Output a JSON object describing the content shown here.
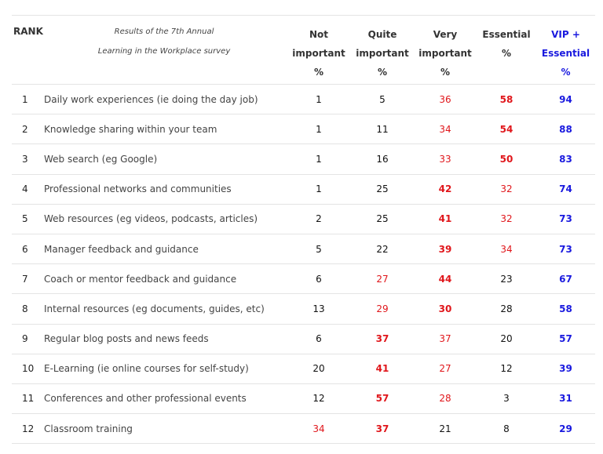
{
  "header": {
    "rank": "RANK",
    "title_line1": "Results of the  7th Annual",
    "title_line2": "Learning in the Workplace survey",
    "not_l1": "Not",
    "not_l2": "important",
    "not_l3": "%",
    "quite_l1": "Quite",
    "quite_l2": "important",
    "quite_l3": "%",
    "very_l1": "Very",
    "very_l2": "important",
    "very_l3": "%",
    "ess_l1": "Essential",
    "ess_l2": "%",
    "vip_l1": "VIP +",
    "vip_l2": "Essential",
    "vip_l3": "%"
  },
  "colors": {
    "red": "#e0161b",
    "blue": "#1a1adf",
    "black": "#111111"
  },
  "rows": [
    {
      "rank": "1",
      "item": "Daily work experiences (ie doing the day job)",
      "not": "1",
      "quite": "5",
      "very": "36",
      "essential": "58",
      "vip": "94"
    },
    {
      "rank": "2",
      "item": "Knowledge sharing within your team",
      "not": "1",
      "quite": "11",
      "very": "34",
      "essential": "54",
      "vip": "88"
    },
    {
      "rank": "3",
      "item": "Web search (eg Google)",
      "not": "1",
      "quite": "16",
      "very": "33",
      "essential": "50",
      "vip": "83"
    },
    {
      "rank": "4",
      "item": "Professional networks and communities",
      "not": "1",
      "quite": "25",
      "very": "42",
      "essential": "32",
      "vip": "74"
    },
    {
      "rank": "5",
      "item": "Web resources (eg videos, podcasts, articles)",
      "not": "2",
      "quite": "25",
      "very": "41",
      "essential": "32",
      "vip": "73"
    },
    {
      "rank": "6",
      "item": "Manager feedback and guidance",
      "not": "5",
      "quite": "22",
      "very": "39",
      "essential": "34",
      "vip": "73"
    },
    {
      "rank": "7",
      "item": "Coach or mentor feedback and guidance",
      "not": "6",
      "quite": "27",
      "very": "44",
      "essential": "23",
      "vip": "67"
    },
    {
      "rank": "8",
      "item": "Internal resources (eg documents, guides, etc)",
      "not": "13",
      "quite": "29",
      "very": "30",
      "essential": "28",
      "vip": "58"
    },
    {
      "rank": "9",
      "item": "Regular blog posts and news feeds",
      "not": "6",
      "quite": "37",
      "very": "37",
      "essential": "20",
      "vip": "57"
    },
    {
      "rank": "10",
      "item": "E-Learning (ie online courses for self-study)",
      "not": "20",
      "quite": "41",
      "very": "27",
      "essential": "12",
      "vip": "39"
    },
    {
      "rank": "11",
      "item": "Conferences and other professional events",
      "not": "12",
      "quite": "57",
      "very": "28",
      "essential": "3",
      "vip": "31"
    },
    {
      "rank": "12",
      "item": "Classroom training",
      "not": "34",
      "quite": "37",
      "very": "21",
      "essential": "8",
      "vip": "29"
    }
  ]
}
